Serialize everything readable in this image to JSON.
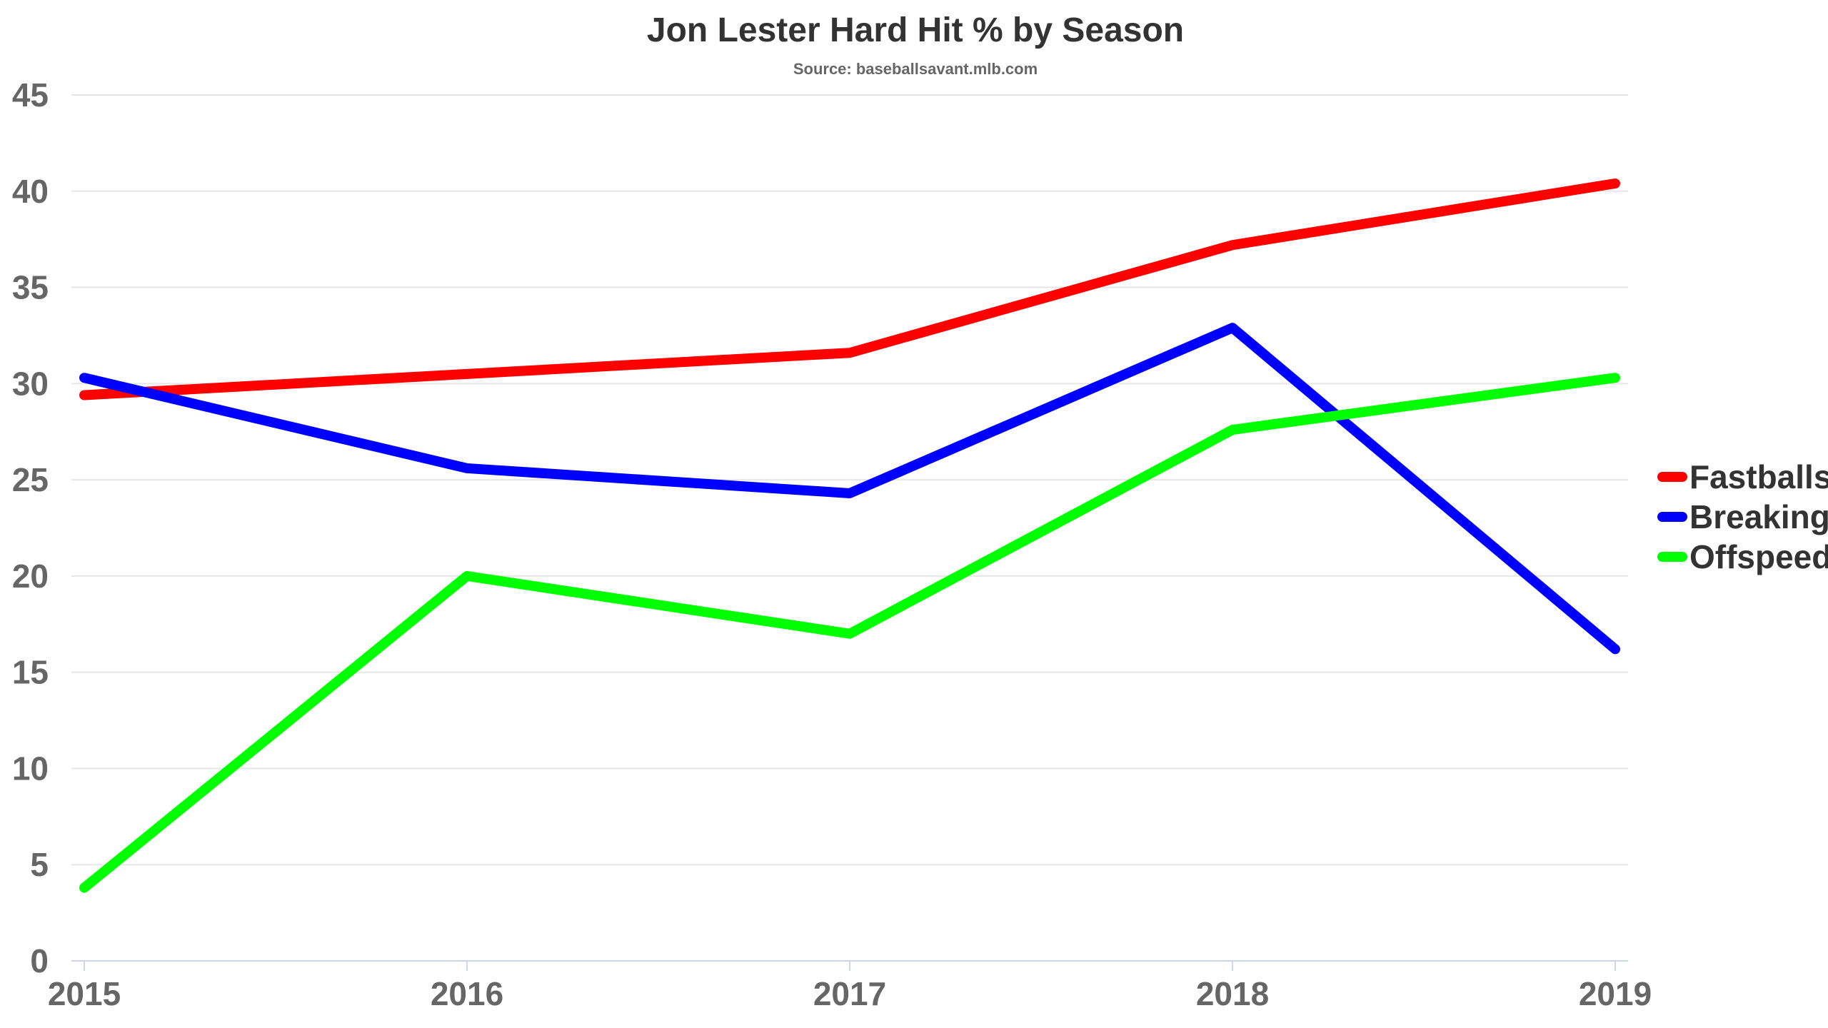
{
  "chart_data": {
    "type": "line",
    "title": "Jon Lester Hard Hit % by Season",
    "subtitle": "Source: baseballsavant.mlb.com",
    "categories": [
      "2015",
      "2016",
      "2017",
      "2018",
      "2019"
    ],
    "ylim": [
      0,
      45
    ],
    "yticks": [
      0,
      5,
      10,
      15,
      20,
      25,
      30,
      35,
      40,
      45
    ],
    "grid": true,
    "legend_position": "right",
    "series": [
      {
        "name": "Fastballs",
        "color": "#ff0000",
        "values": [
          29.4,
          30.5,
          31.6,
          37.2,
          40.4
        ]
      },
      {
        "name": "Breaking",
        "color": "#0000ff",
        "values": [
          30.3,
          25.6,
          24.3,
          32.9,
          16.2
        ]
      },
      {
        "name": "Offspeed",
        "color": "#00ff00",
        "values": [
          3.8,
          20.0,
          17.0,
          27.6,
          30.3
        ]
      }
    ]
  }
}
